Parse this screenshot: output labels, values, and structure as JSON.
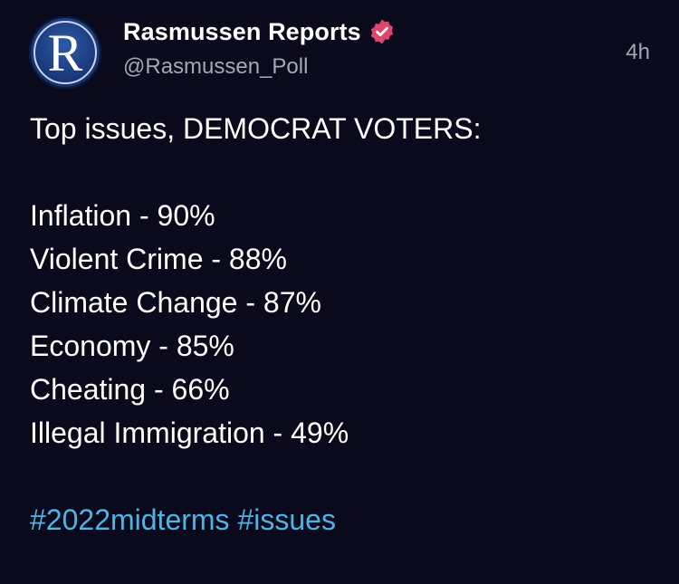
{
  "post": {
    "author": {
      "display_name": "Rasmussen Reports",
      "handle": "@Rasmussen_Poll",
      "avatar_letter": "R",
      "verified": true,
      "verified_color": "#e0456b"
    },
    "timestamp": "4h",
    "text": {
      "heading": "Top issues, DEMOCRAT VOTERS:",
      "items": [
        "Inflation - 90%",
        "Violent Crime - 88%",
        "Climate Change - 87%",
        "Economy - 85%",
        "Cheating - 66%",
        "Illegal Immigration - 49%"
      ],
      "hashtags": [
        "#2022midterms",
        "#issues"
      ]
    }
  },
  "colors": {
    "background": "#0b0a1c",
    "text": "#ffffff",
    "muted": "#a7a6b5",
    "hashtag": "#4db4e6"
  }
}
